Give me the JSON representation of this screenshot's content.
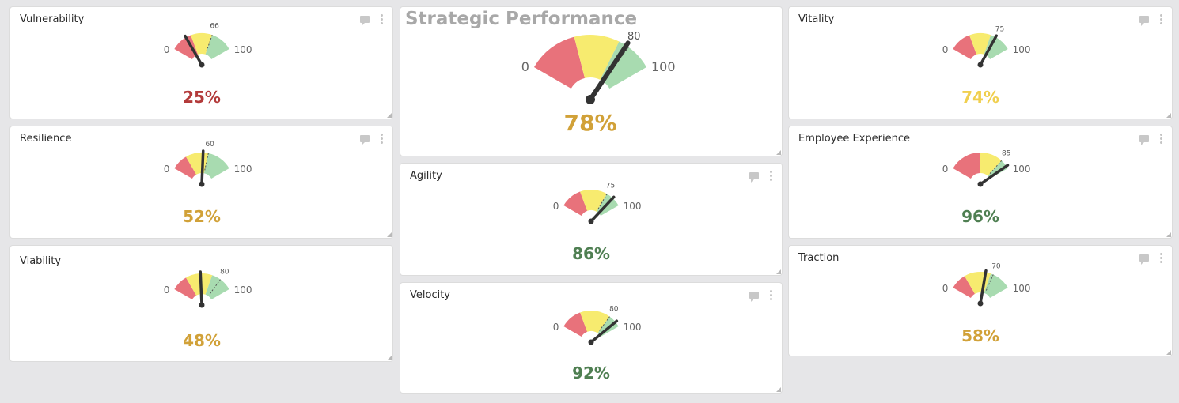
{
  "colors": {
    "red": "#e8727b",
    "yellow": "#f7eb6f",
    "green": "#a8dbb0",
    "needle": "#333333",
    "value_red": "#b33a3a",
    "value_amber": "#d1a138",
    "value_yellow": "#f0cf4f",
    "value_green": "#4f7f52"
  },
  "icons": {
    "comment": "comment-icon",
    "menu": "kebab-icon",
    "resize": "resize-icon"
  },
  "gauges": [
    {
      "id": "vulnerability",
      "title": "Vulnerability",
      "target": "66",
      "value": "25%",
      "min_label": "0",
      "max_label": "100",
      "needle": 25,
      "target_pos": 66,
      "red_end": 33,
      "yellow_end": 66,
      "value_color": "value_red"
    },
    {
      "id": "resilience",
      "title": "Resilience",
      "target": "60",
      "value": "52%",
      "min_label": "0",
      "max_label": "100",
      "needle": 52,
      "target_pos": 60,
      "red_end": 25,
      "yellow_end": 60,
      "value_color": "value_amber"
    },
    {
      "id": "viability",
      "title": "Viability",
      "target": "80",
      "value": "48%",
      "min_label": "0",
      "max_label": "100",
      "needle": 48,
      "target_pos": 80,
      "red_end": 25,
      "yellow_end": 66,
      "value_color": "value_amber"
    },
    {
      "id": "strategic",
      "title": "Strategic Performance",
      "target": "80",
      "value": "78%",
      "min_label": "0",
      "max_label": "100",
      "needle": 78,
      "target_pos": 80,
      "red_end": 38,
      "yellow_end": 72,
      "value_color": "value_amber"
    },
    {
      "id": "agility",
      "title": "Agility",
      "target": "75",
      "value": "86%",
      "min_label": "0",
      "max_label": "100",
      "needle": 86,
      "target_pos": 75,
      "red_end": 33,
      "yellow_end": 75,
      "value_color": "value_green"
    },
    {
      "id": "velocity",
      "title": "Velocity",
      "target": "80",
      "value": "92%",
      "min_label": "0",
      "max_label": "100",
      "needle": 92,
      "target_pos": 80,
      "red_end": 33,
      "yellow_end": 80,
      "value_color": "value_green"
    },
    {
      "id": "vitality",
      "title": "Vitality",
      "target": "75",
      "value": "74%",
      "min_label": "0",
      "max_label": "100",
      "needle": 74,
      "target_pos": 75,
      "red_end": 33,
      "yellow_end": 66,
      "value_color": "value_yellow"
    },
    {
      "id": "employee_experience",
      "title": "Employee Experience",
      "target": "85",
      "value": "96%",
      "min_label": "0",
      "max_label": "100",
      "needle": 96,
      "target_pos": 85,
      "red_end": 50,
      "yellow_end": 85,
      "value_color": "value_green"
    },
    {
      "id": "traction",
      "title": "Traction",
      "target": "70",
      "value": "58%",
      "min_label": "0",
      "max_label": "100",
      "needle": 58,
      "target_pos": 70,
      "red_end": 25,
      "yellow_end": 66,
      "value_color": "value_amber"
    }
  ]
}
